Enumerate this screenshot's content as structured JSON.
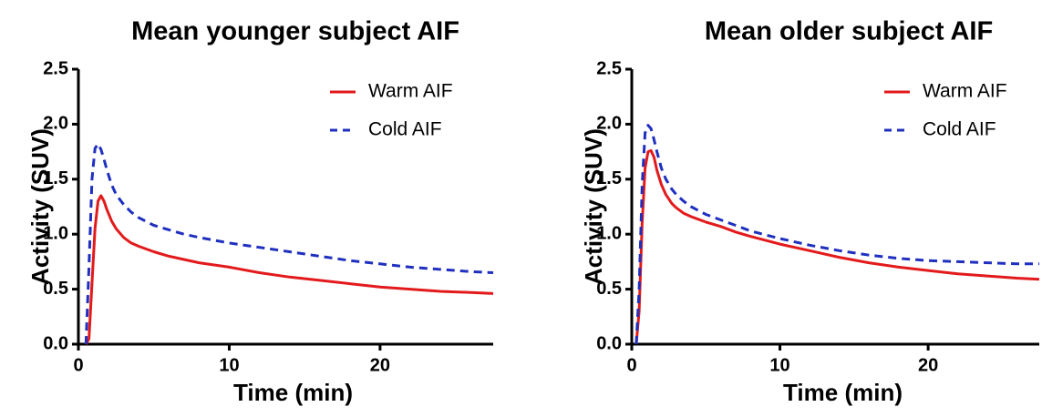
{
  "chart_data": [
    {
      "type": "line",
      "title": "Mean younger subject AIF",
      "xlabel": "Time (min)",
      "ylabel": "Activity (SUV)",
      "xlim": [
        0,
        27.5
      ],
      "ylim": [
        0,
        2.5
      ],
      "xticks": [
        0,
        10,
        20
      ],
      "xtick_labels": [
        "0",
        "10",
        "20"
      ],
      "yticks": [
        0,
        0.5,
        1.0,
        1.5,
        2.0,
        2.5
      ],
      "ytick_labels": [
        "0.0",
        "0.5",
        "1.0",
        "1.5",
        "2.0",
        "2.5"
      ],
      "legend_position": "top-right",
      "series": [
        {
          "name": "Warm AIF",
          "color": "#e31a1c",
          "dash": "solid",
          "x": [
            0.5,
            0.7,
            0.9,
            1.1,
            1.3,
            1.5,
            1.7,
            1.9,
            2.2,
            2.5,
            3.0,
            3.5,
            4.0,
            5.0,
            6.0,
            7.0,
            8.0,
            10.0,
            12.0,
            14.0,
            16.0,
            18.0,
            20.0,
            22.0,
            24.0,
            26.0,
            27.5
          ],
          "y": [
            0.0,
            0.05,
            0.55,
            1.05,
            1.3,
            1.35,
            1.3,
            1.22,
            1.12,
            1.05,
            0.97,
            0.92,
            0.89,
            0.84,
            0.8,
            0.77,
            0.74,
            0.7,
            0.65,
            0.61,
            0.58,
            0.55,
            0.52,
            0.5,
            0.48,
            0.47,
            0.46
          ]
        },
        {
          "name": "Cold AIF",
          "color": "#1f2fbf",
          "dash": "dashed",
          "x": [
            0.5,
            0.7,
            0.9,
            1.1,
            1.3,
            1.5,
            1.7,
            1.9,
            2.2,
            2.5,
            3.0,
            3.5,
            4.0,
            5.0,
            6.0,
            7.0,
            8.0,
            10.0,
            12.0,
            14.0,
            16.0,
            18.0,
            20.0,
            22.0,
            24.0,
            26.0,
            27.5
          ],
          "y": [
            0.0,
            0.7,
            1.5,
            1.78,
            1.82,
            1.77,
            1.68,
            1.58,
            1.45,
            1.36,
            1.27,
            1.2,
            1.15,
            1.08,
            1.04,
            1.0,
            0.97,
            0.92,
            0.88,
            0.84,
            0.8,
            0.76,
            0.73,
            0.7,
            0.68,
            0.66,
            0.65
          ]
        }
      ]
    },
    {
      "type": "line",
      "title": "Mean older subject AIF",
      "xlabel": "Time (min)",
      "ylabel": "Activity (SUV)",
      "xlim": [
        0,
        27.5
      ],
      "ylim": [
        0,
        2.5
      ],
      "xticks": [
        0,
        10,
        20
      ],
      "xtick_labels": [
        "0",
        "10",
        "20"
      ],
      "yticks": [
        0,
        0.5,
        1.0,
        1.5,
        2.0,
        2.5
      ],
      "ytick_labels": [
        "0.0",
        "0.5",
        "1.0",
        "1.5",
        "2.0",
        "2.5"
      ],
      "legend_position": "top-right",
      "series": [
        {
          "name": "Warm AIF",
          "color": "#e31a1c",
          "dash": "solid",
          "x": [
            0.3,
            0.5,
            0.7,
            0.9,
            1.1,
            1.3,
            1.5,
            1.7,
            2.0,
            2.3,
            2.7,
            3.0,
            3.5,
            4.0,
            5.0,
            6.0,
            7.0,
            8.0,
            10.0,
            12.0,
            14.0,
            16.0,
            18.0,
            20.0,
            22.0,
            24.0,
            26.0,
            27.5
          ],
          "y": [
            0.0,
            0.3,
            1.1,
            1.6,
            1.75,
            1.76,
            1.7,
            1.58,
            1.45,
            1.36,
            1.28,
            1.24,
            1.19,
            1.16,
            1.11,
            1.07,
            1.02,
            0.98,
            0.91,
            0.85,
            0.79,
            0.74,
            0.7,
            0.67,
            0.64,
            0.62,
            0.6,
            0.59
          ]
        },
        {
          "name": "Cold AIF",
          "color": "#1f2fbf",
          "dash": "dashed",
          "x": [
            0.3,
            0.5,
            0.7,
            0.9,
            1.1,
            1.3,
            1.5,
            1.7,
            2.0,
            2.3,
            2.7,
            3.0,
            3.5,
            4.0,
            5.0,
            6.0,
            7.0,
            8.0,
            10.0,
            12.0,
            14.0,
            16.0,
            18.0,
            20.0,
            22.0,
            24.0,
            26.0,
            27.5
          ],
          "y": [
            0.0,
            0.5,
            1.45,
            1.92,
            1.99,
            1.96,
            1.86,
            1.75,
            1.6,
            1.5,
            1.41,
            1.36,
            1.3,
            1.25,
            1.18,
            1.13,
            1.08,
            1.03,
            0.96,
            0.9,
            0.85,
            0.81,
            0.78,
            0.76,
            0.75,
            0.74,
            0.73,
            0.73
          ]
        }
      ]
    }
  ]
}
